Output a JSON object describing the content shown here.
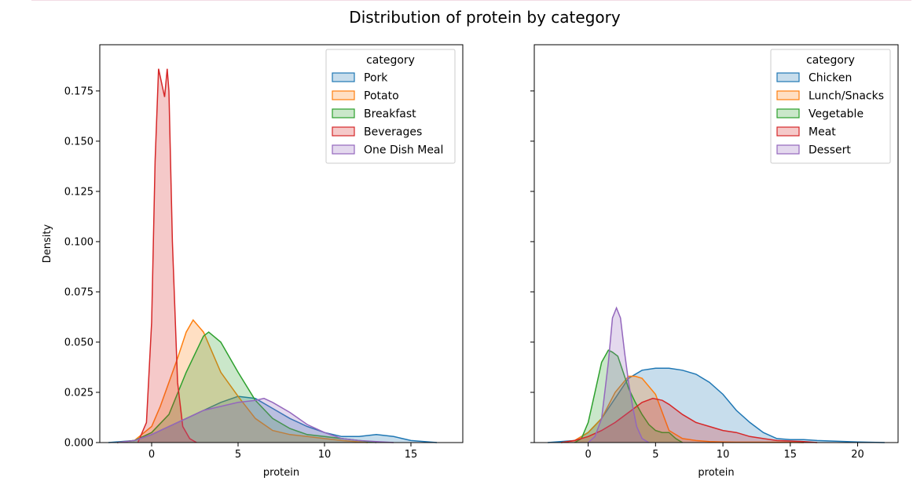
{
  "figure_title": "Distribution of protein by category",
  "colors": [
    "#1f77b4",
    "#ff7f0e",
    "#2ca02c",
    "#d62728",
    "#9467bd"
  ],
  "chart_data": [
    {
      "type": "area",
      "title": "",
      "xlabel": "protein",
      "ylabel": "Density",
      "xlim": [
        -3,
        18
      ],
      "ylim": [
        0,
        0.198
      ],
      "xticks": [
        0,
        5,
        10,
        15
      ],
      "yticks": [
        0.0,
        0.025,
        0.05,
        0.075,
        0.1,
        0.125,
        0.15,
        0.175
      ],
      "ytick_labels": [
        "0.000",
        "0.025",
        "0.050",
        "0.075",
        "0.100",
        "0.125",
        "0.150",
        "0.175"
      ],
      "legend_title": "category",
      "legend_position": "top-right",
      "series": [
        {
          "name": "Pork",
          "color": "#1f77b4",
          "x": [
            -2.5,
            -1,
            0,
            1,
            2,
            3,
            4,
            5,
            6,
            7,
            8,
            9,
            10,
            11,
            12,
            13,
            14,
            15,
            16.5
          ],
          "y": [
            0,
            0.001,
            0.004,
            0.008,
            0.012,
            0.016,
            0.02,
            0.023,
            0.022,
            0.017,
            0.012,
            0.008,
            0.005,
            0.003,
            0.003,
            0.004,
            0.003,
            0.001,
            0
          ]
        },
        {
          "name": "Potato",
          "color": "#ff7f0e",
          "x": [
            -2,
            -1,
            0,
            0.5,
            1,
            1.5,
            2,
            2.4,
            3,
            3.5,
            4,
            5,
            6,
            7,
            8,
            9,
            10,
            11,
            12.5
          ],
          "y": [
            0,
            0.001,
            0.008,
            0.018,
            0.03,
            0.042,
            0.055,
            0.061,
            0.055,
            0.045,
            0.035,
            0.023,
            0.012,
            0.006,
            0.004,
            0.003,
            0.002,
            0.001,
            0
          ]
        },
        {
          "name": "Breakfast",
          "color": "#2ca02c",
          "x": [
            -2,
            -1,
            0,
            1,
            2,
            3,
            3.3,
            4,
            5,
            6,
            7,
            8,
            9,
            10,
            11,
            12,
            13
          ],
          "y": [
            0,
            0.001,
            0.005,
            0.014,
            0.035,
            0.053,
            0.055,
            0.05,
            0.035,
            0.021,
            0.012,
            0.007,
            0.004,
            0.003,
            0.002,
            0.001,
            0
          ]
        },
        {
          "name": "Beverages",
          "color": "#d62728",
          "x": [
            -0.8,
            -0.3,
            0,
            0.2,
            0.4,
            0.6,
            0.75,
            0.9,
            1.0,
            1.2,
            1.5,
            1.8,
            2.2,
            2.6
          ],
          "y": [
            0,
            0.01,
            0.06,
            0.14,
            0.186,
            0.178,
            0.172,
            0.186,
            0.175,
            0.1,
            0.03,
            0.008,
            0.002,
            0
          ]
        },
        {
          "name": "One Dish Meal",
          "color": "#9467bd",
          "x": [
            -2,
            -1,
            0,
            1,
            2,
            3,
            4,
            5,
            6,
            6.5,
            7,
            8,
            9,
            10,
            11,
            12,
            13,
            14
          ],
          "y": [
            0,
            0.001,
            0.004,
            0.008,
            0.012,
            0.016,
            0.018,
            0.02,
            0.021,
            0.022,
            0.02,
            0.015,
            0.009,
            0.005,
            0.002,
            0.001,
            0.0005,
            0
          ]
        }
      ]
    },
    {
      "type": "area",
      "title": "",
      "xlabel": "protein",
      "ylabel": "",
      "xlim": [
        -4,
        23
      ],
      "ylim": [
        0,
        0.198
      ],
      "xticks": [
        0,
        5,
        10,
        15,
        20
      ],
      "yticks": [
        0.0,
        0.025,
        0.05,
        0.075,
        0.1,
        0.125,
        0.15,
        0.175
      ],
      "ytick_labels": [],
      "legend_title": "category",
      "legend_position": "top-right",
      "series": [
        {
          "name": "Chicken",
          "color": "#1f77b4",
          "x": [
            -3,
            -1,
            0,
            1,
            2,
            3,
            4,
            5,
            6,
            7,
            8,
            9,
            10,
            11,
            12,
            13,
            14,
            15,
            16,
            17,
            18,
            20,
            22
          ],
          "y": [
            0,
            0.001,
            0.005,
            0.012,
            0.022,
            0.032,
            0.036,
            0.037,
            0.037,
            0.036,
            0.034,
            0.03,
            0.024,
            0.016,
            0.01,
            0.005,
            0.002,
            0.0015,
            0.0015,
            0.001,
            0.0008,
            0.0003,
            0
          ]
        },
        {
          "name": "Lunch/Snacks",
          "color": "#ff7f0e",
          "x": [
            -2,
            -1,
            0,
            1,
            2,
            3,
            3.5,
            4,
            5,
            5.5,
            6,
            7,
            8,
            9,
            10,
            11,
            12,
            13,
            14,
            15,
            16
          ],
          "y": [
            0,
            0.001,
            0.005,
            0.012,
            0.025,
            0.033,
            0.033,
            0.032,
            0.024,
            0.015,
            0.006,
            0.002,
            0.001,
            0.0005,
            0.0003,
            0.0002,
            0.0002,
            0.0002,
            0.0002,
            0.0001,
            0
          ]
        },
        {
          "name": "Vegetable",
          "color": "#2ca02c",
          "x": [
            -1,
            -0.5,
            0,
            0.5,
            1,
            1.5,
            1.8,
            2.2,
            2.6,
            3,
            3.5,
            4,
            4.5,
            5,
            5.5,
            6,
            6.5,
            7
          ],
          "y": [
            0,
            0.002,
            0.01,
            0.025,
            0.04,
            0.046,
            0.045,
            0.043,
            0.035,
            0.027,
            0.02,
            0.014,
            0.009,
            0.006,
            0.005,
            0.005,
            0.002,
            0
          ]
        },
        {
          "name": "Meat",
          "color": "#d62728",
          "x": [
            -2,
            -1,
            0,
            1,
            2,
            3,
            4,
            4.8,
            5.5,
            6,
            7,
            8,
            9,
            10,
            11,
            12,
            13,
            14,
            15,
            16,
            17
          ],
          "y": [
            0,
            0.001,
            0.003,
            0.006,
            0.01,
            0.015,
            0.02,
            0.022,
            0.021,
            0.019,
            0.014,
            0.01,
            0.008,
            0.006,
            0.005,
            0.003,
            0.002,
            0.001,
            0.0008,
            0.0005,
            0
          ]
        },
        {
          "name": "Dessert",
          "color": "#9467bd",
          "x": [
            0,
            0.5,
            1,
            1.5,
            1.8,
            2.1,
            2.4,
            2.7,
            3.0,
            3.3,
            3.6,
            4.0,
            4.5
          ],
          "y": [
            0,
            0.003,
            0.012,
            0.04,
            0.062,
            0.067,
            0.062,
            0.045,
            0.03,
            0.018,
            0.008,
            0.002,
            0
          ]
        }
      ]
    }
  ]
}
